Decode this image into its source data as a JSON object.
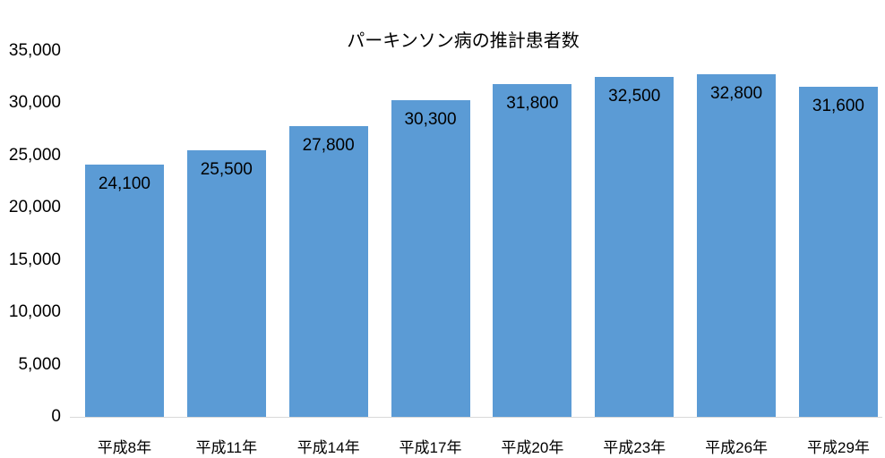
{
  "chart_data": {
    "type": "bar",
    "title": "パーキンソン病の推計患者数",
    "categories": [
      "平成8年",
      "平成11年",
      "平成14年",
      "平成17年",
      "平成20年",
      "平成23年",
      "平成26年",
      "平成29年"
    ],
    "values": [
      24100,
      25500,
      27800,
      30300,
      31800,
      32500,
      32800,
      31600
    ],
    "data_labels": [
      "24,100",
      "25,500",
      "27,800",
      "30,300",
      "31,800",
      "32,500",
      "32,800",
      "31,600"
    ],
    "xlabel": "",
    "ylabel": "",
    "ylim": [
      0,
      35000
    ],
    "ytick_step": 5000,
    "ytick_labels": [
      "0",
      "5,000",
      "10,000",
      "15,000",
      "20,000",
      "25,000",
      "30,000",
      "35,000"
    ],
    "data_label_position": "inside-top",
    "grid": false,
    "legend": "none",
    "colors": {
      "bar": "#5B9BD5",
      "text": "#000000",
      "axis_line": "#D9D9D9",
      "background": "#FFFFFF"
    }
  }
}
